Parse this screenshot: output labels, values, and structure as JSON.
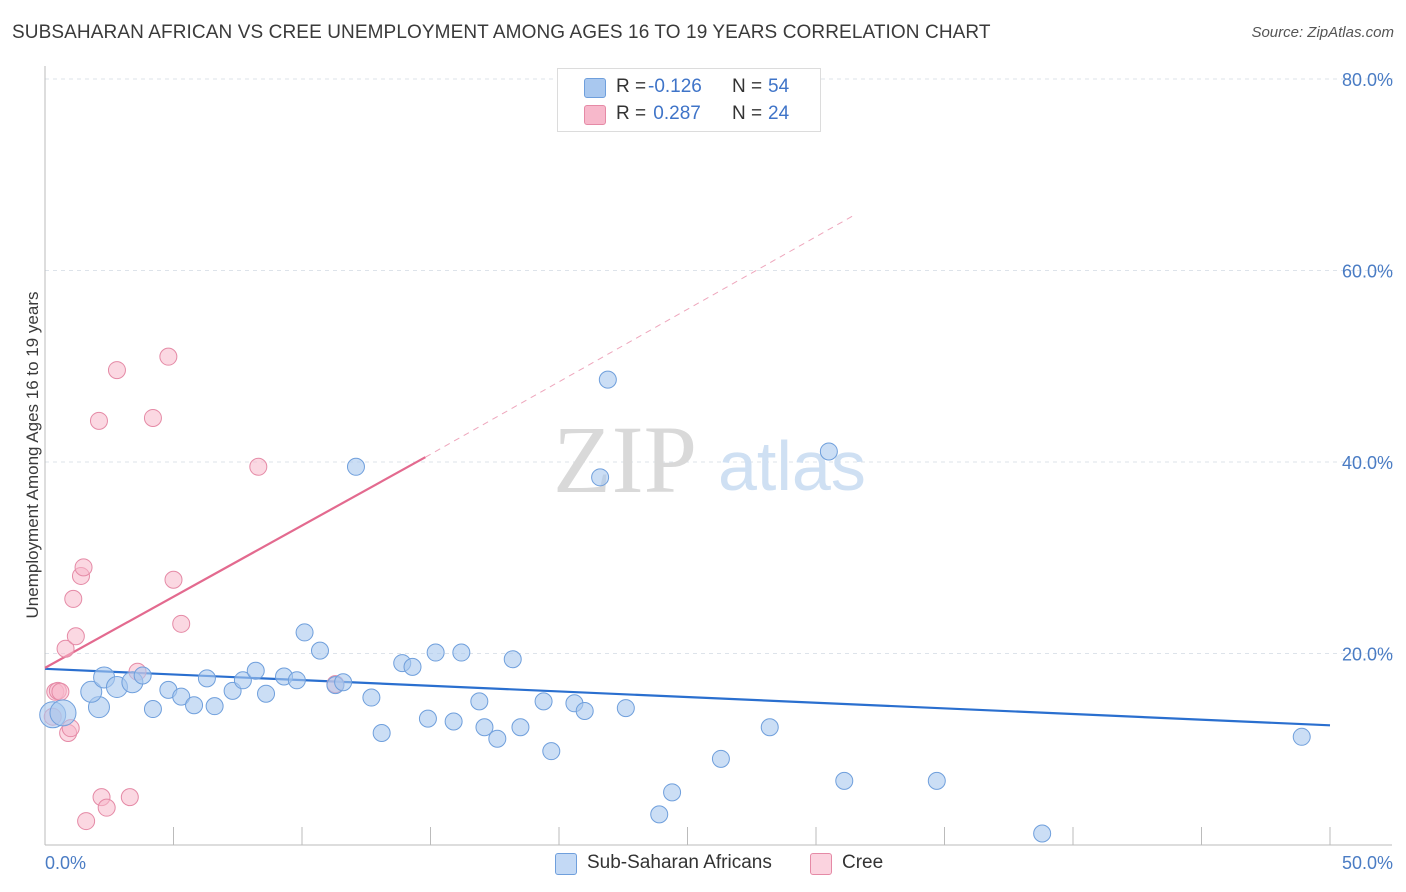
{
  "header": {
    "title": "SUBSAHARAN AFRICAN VS CREE UNEMPLOYMENT AMONG AGES 16 TO 19 YEARS CORRELATION CHART",
    "source": "Source: ZipAtlas.com"
  },
  "watermark": {
    "zip": "ZIP",
    "atlas": "atlas"
  },
  "legend": {
    "rows": [
      {
        "r_label": "R =",
        "r_value": "-0.126",
        "n_label": "N =",
        "n_value": "54",
        "color": "#a9c8ef"
      },
      {
        "r_label": "R =",
        "r_value": " 0.287",
        "n_label": "N =",
        "n_value": "24",
        "color": "#f7b8cb"
      }
    ]
  },
  "bottom_legend": [
    {
      "label": "Sub-Saharan Africans",
      "color": "#a9c8ef"
    },
    {
      "label": "Cree",
      "color": "#f7b8cb"
    }
  ],
  "colors": {
    "blue_point": "#a9c8ef",
    "blue_stroke": "#6f9fdc",
    "blue_line": "#2a6fcf",
    "pink_point": "#f7b8cb",
    "pink_stroke": "#e58aa6",
    "pink_line": "#e36a8f",
    "grid": "#dde3ea",
    "tick_text": "#4a7cc4"
  },
  "chart_data": {
    "type": "scatter",
    "title": "SUBSAHARAN AFRICAN VS CREE UNEMPLOYMENT AMONG AGES 16 TO 19 YEARS CORRELATION CHART",
    "xlabel": "",
    "ylabel": "Unemployment Among Ages 16 to 19 years",
    "xlim": [
      0,
      50
    ],
    "ylim": [
      0,
      80
    ],
    "x_tick_labels": [
      "0.0%",
      "50.0%"
    ],
    "y_ticks": [
      20,
      40,
      60,
      80
    ],
    "y_tick_labels": [
      "20.0%",
      "40.0%",
      "60.0%",
      "80.0%"
    ],
    "grid": true,
    "legend_position": "top-center",
    "series": [
      {
        "name": "Sub-Saharan Africans",
        "color": "#a9c8ef",
        "trend": {
          "x": [
            0,
            50
          ],
          "y": [
            18.4,
            12.5
          ],
          "style": "solid"
        },
        "points": [
          {
            "x": 0.3,
            "y": 13.6,
            "s": 3
          },
          {
            "x": 0.7,
            "y": 13.8,
            "s": 3
          },
          {
            "x": 2.1,
            "y": 14.4,
            "s": 2
          },
          {
            "x": 1.8,
            "y": 16.0,
            "s": 2
          },
          {
            "x": 2.3,
            "y": 17.5,
            "s": 2
          },
          {
            "x": 2.8,
            "y": 16.5,
            "s": 2
          },
          {
            "x": 3.4,
            "y": 17.0,
            "s": 2
          },
          {
            "x": 3.8,
            "y": 17.7,
            "s": 1
          },
          {
            "x": 4.2,
            "y": 14.2,
            "s": 1
          },
          {
            "x": 4.8,
            "y": 16.2,
            "s": 1
          },
          {
            "x": 5.3,
            "y": 15.5,
            "s": 1
          },
          {
            "x": 5.8,
            "y": 14.6,
            "s": 1
          },
          {
            "x": 6.3,
            "y": 17.4,
            "s": 1
          },
          {
            "x": 6.6,
            "y": 14.5,
            "s": 1
          },
          {
            "x": 7.3,
            "y": 16.1,
            "s": 1
          },
          {
            "x": 7.7,
            "y": 17.2,
            "s": 1
          },
          {
            "x": 8.2,
            "y": 18.2,
            "s": 1
          },
          {
            "x": 8.6,
            "y": 15.8,
            "s": 1
          },
          {
            "x": 9.3,
            "y": 17.6,
            "s": 1
          },
          {
            "x": 9.8,
            "y": 17.2,
            "s": 1
          },
          {
            "x": 10.1,
            "y": 22.2,
            "s": 1
          },
          {
            "x": 10.7,
            "y": 20.3,
            "s": 1
          },
          {
            "x": 11.3,
            "y": 16.7,
            "s": 1
          },
          {
            "x": 11.6,
            "y": 17.0,
            "s": 1
          },
          {
            "x": 12.1,
            "y": 39.5,
            "s": 1
          },
          {
            "x": 12.7,
            "y": 15.4,
            "s": 1
          },
          {
            "x": 13.1,
            "y": 11.7,
            "s": 1
          },
          {
            "x": 13.9,
            "y": 19.0,
            "s": 1
          },
          {
            "x": 14.3,
            "y": 18.6,
            "s": 1
          },
          {
            "x": 14.9,
            "y": 13.2,
            "s": 1
          },
          {
            "x": 15.2,
            "y": 20.1,
            "s": 1
          },
          {
            "x": 15.9,
            "y": 12.9,
            "s": 1
          },
          {
            "x": 16.2,
            "y": 20.1,
            "s": 1
          },
          {
            "x": 16.9,
            "y": 15.0,
            "s": 1
          },
          {
            "x": 17.1,
            "y": 12.3,
            "s": 1
          },
          {
            "x": 17.6,
            "y": 11.1,
            "s": 1
          },
          {
            "x": 18.2,
            "y": 19.4,
            "s": 1
          },
          {
            "x": 18.5,
            "y": 12.3,
            "s": 1
          },
          {
            "x": 19.4,
            "y": 15.0,
            "s": 1
          },
          {
            "x": 19.7,
            "y": 9.8,
            "s": 1
          },
          {
            "x": 20.6,
            "y": 14.8,
            "s": 1
          },
          {
            "x": 21.0,
            "y": 14.0,
            "s": 1
          },
          {
            "x": 21.6,
            "y": 38.4,
            "s": 1
          },
          {
            "x": 21.9,
            "y": 48.6,
            "s": 1
          },
          {
            "x": 22.6,
            "y": 14.3,
            "s": 1
          },
          {
            "x": 23.9,
            "y": 3.2,
            "s": 1
          },
          {
            "x": 24.4,
            "y": 5.5,
            "s": 1
          },
          {
            "x": 26.3,
            "y": 9.0,
            "s": 1
          },
          {
            "x": 28.2,
            "y": 12.3,
            "s": 1
          },
          {
            "x": 30.5,
            "y": 41.1,
            "s": 1
          },
          {
            "x": 31.1,
            "y": 6.7,
            "s": 1
          },
          {
            "x": 34.7,
            "y": 6.7,
            "s": 1
          },
          {
            "x": 38.8,
            "y": 1.2,
            "s": 1
          },
          {
            "x": 48.9,
            "y": 11.3,
            "s": 1
          }
        ]
      },
      {
        "name": "Cree",
        "color": "#f7b8cb",
        "trend": {
          "x": [
            0,
            14.8
          ],
          "y": [
            18.5,
            40.5
          ],
          "style": "solid",
          "extension_x": [
            14.8,
            31.5
          ],
          "extension_y": [
            40.5,
            65.8
          ],
          "extension_style": "dashed"
        },
        "points": [
          {
            "x": 0.3,
            "y": 13.4,
            "s": 1
          },
          {
            "x": 0.4,
            "y": 16.0,
            "s": 1
          },
          {
            "x": 0.5,
            "y": 16.1,
            "s": 1
          },
          {
            "x": 0.6,
            "y": 16.0,
            "s": 1
          },
          {
            "x": 0.8,
            "y": 20.5,
            "s": 1
          },
          {
            "x": 0.9,
            "y": 11.7,
            "s": 1
          },
          {
            "x": 1.0,
            "y": 12.2,
            "s": 1
          },
          {
            "x": 1.1,
            "y": 25.7,
            "s": 1
          },
          {
            "x": 1.2,
            "y": 21.8,
            "s": 1
          },
          {
            "x": 1.4,
            "y": 28.1,
            "s": 1
          },
          {
            "x": 1.5,
            "y": 29.0,
            "s": 1
          },
          {
            "x": 1.6,
            "y": 2.5,
            "s": 1
          },
          {
            "x": 2.1,
            "y": 44.3,
            "s": 1
          },
          {
            "x": 2.2,
            "y": 5.0,
            "s": 1
          },
          {
            "x": 2.4,
            "y": 3.9,
            "s": 1
          },
          {
            "x": 2.8,
            "y": 49.6,
            "s": 1
          },
          {
            "x": 3.3,
            "y": 5.0,
            "s": 1
          },
          {
            "x": 3.6,
            "y": 18.1,
            "s": 1
          },
          {
            "x": 4.2,
            "y": 44.6,
            "s": 1
          },
          {
            "x": 4.8,
            "y": 51.0,
            "s": 1
          },
          {
            "x": 5.0,
            "y": 27.7,
            "s": 1
          },
          {
            "x": 5.3,
            "y": 23.1,
            "s": 1
          },
          {
            "x": 8.3,
            "y": 39.5,
            "s": 1
          },
          {
            "x": 11.3,
            "y": 16.8,
            "s": 1
          }
        ]
      }
    ]
  }
}
